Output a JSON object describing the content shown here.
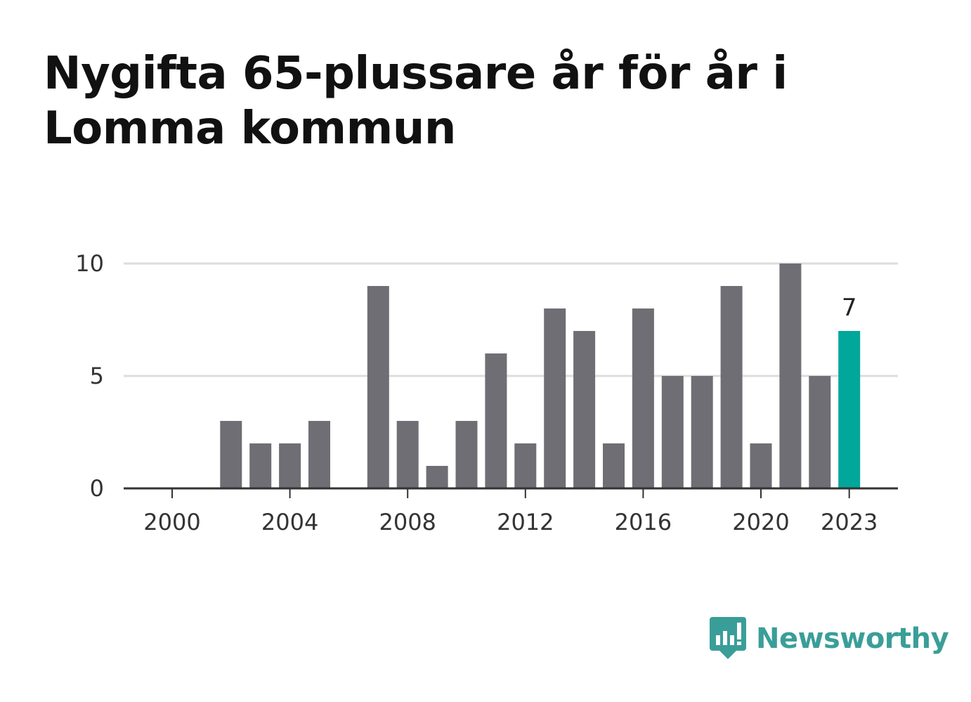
{
  "title": "Nygifta 65-plussare år för år i Lomma kommun",
  "brand": {
    "name": "Newsworthy",
    "icon": "newsworthy-chart-icon",
    "color": "#3a9e98"
  },
  "colors": {
    "bar": "#6f6e74",
    "highlight": "#00a79a",
    "grid": "#dddddd",
    "axis": "#333333"
  },
  "chart_data": {
    "type": "bar",
    "categories": [
      2000,
      2001,
      2002,
      2003,
      2004,
      2005,
      2006,
      2007,
      2008,
      2009,
      2010,
      2011,
      2012,
      2013,
      2014,
      2015,
      2016,
      2017,
      2018,
      2019,
      2020,
      2021,
      2022,
      2023
    ],
    "values": [
      0,
      0,
      3,
      2,
      2,
      3,
      0,
      9,
      3,
      1,
      3,
      6,
      2,
      8,
      7,
      2,
      8,
      5,
      5,
      9,
      2,
      10,
      5,
      7
    ],
    "x_tick_labels": [
      "2000",
      "2004",
      "2008",
      "2012",
      "2016",
      "2020",
      "2023"
    ],
    "y_ticks": [
      0,
      5,
      10
    ],
    "ylim": [
      0,
      10
    ],
    "highlight": {
      "category": 2023,
      "label": "7"
    },
    "grid": true,
    "xlabel": "",
    "ylabel": ""
  }
}
